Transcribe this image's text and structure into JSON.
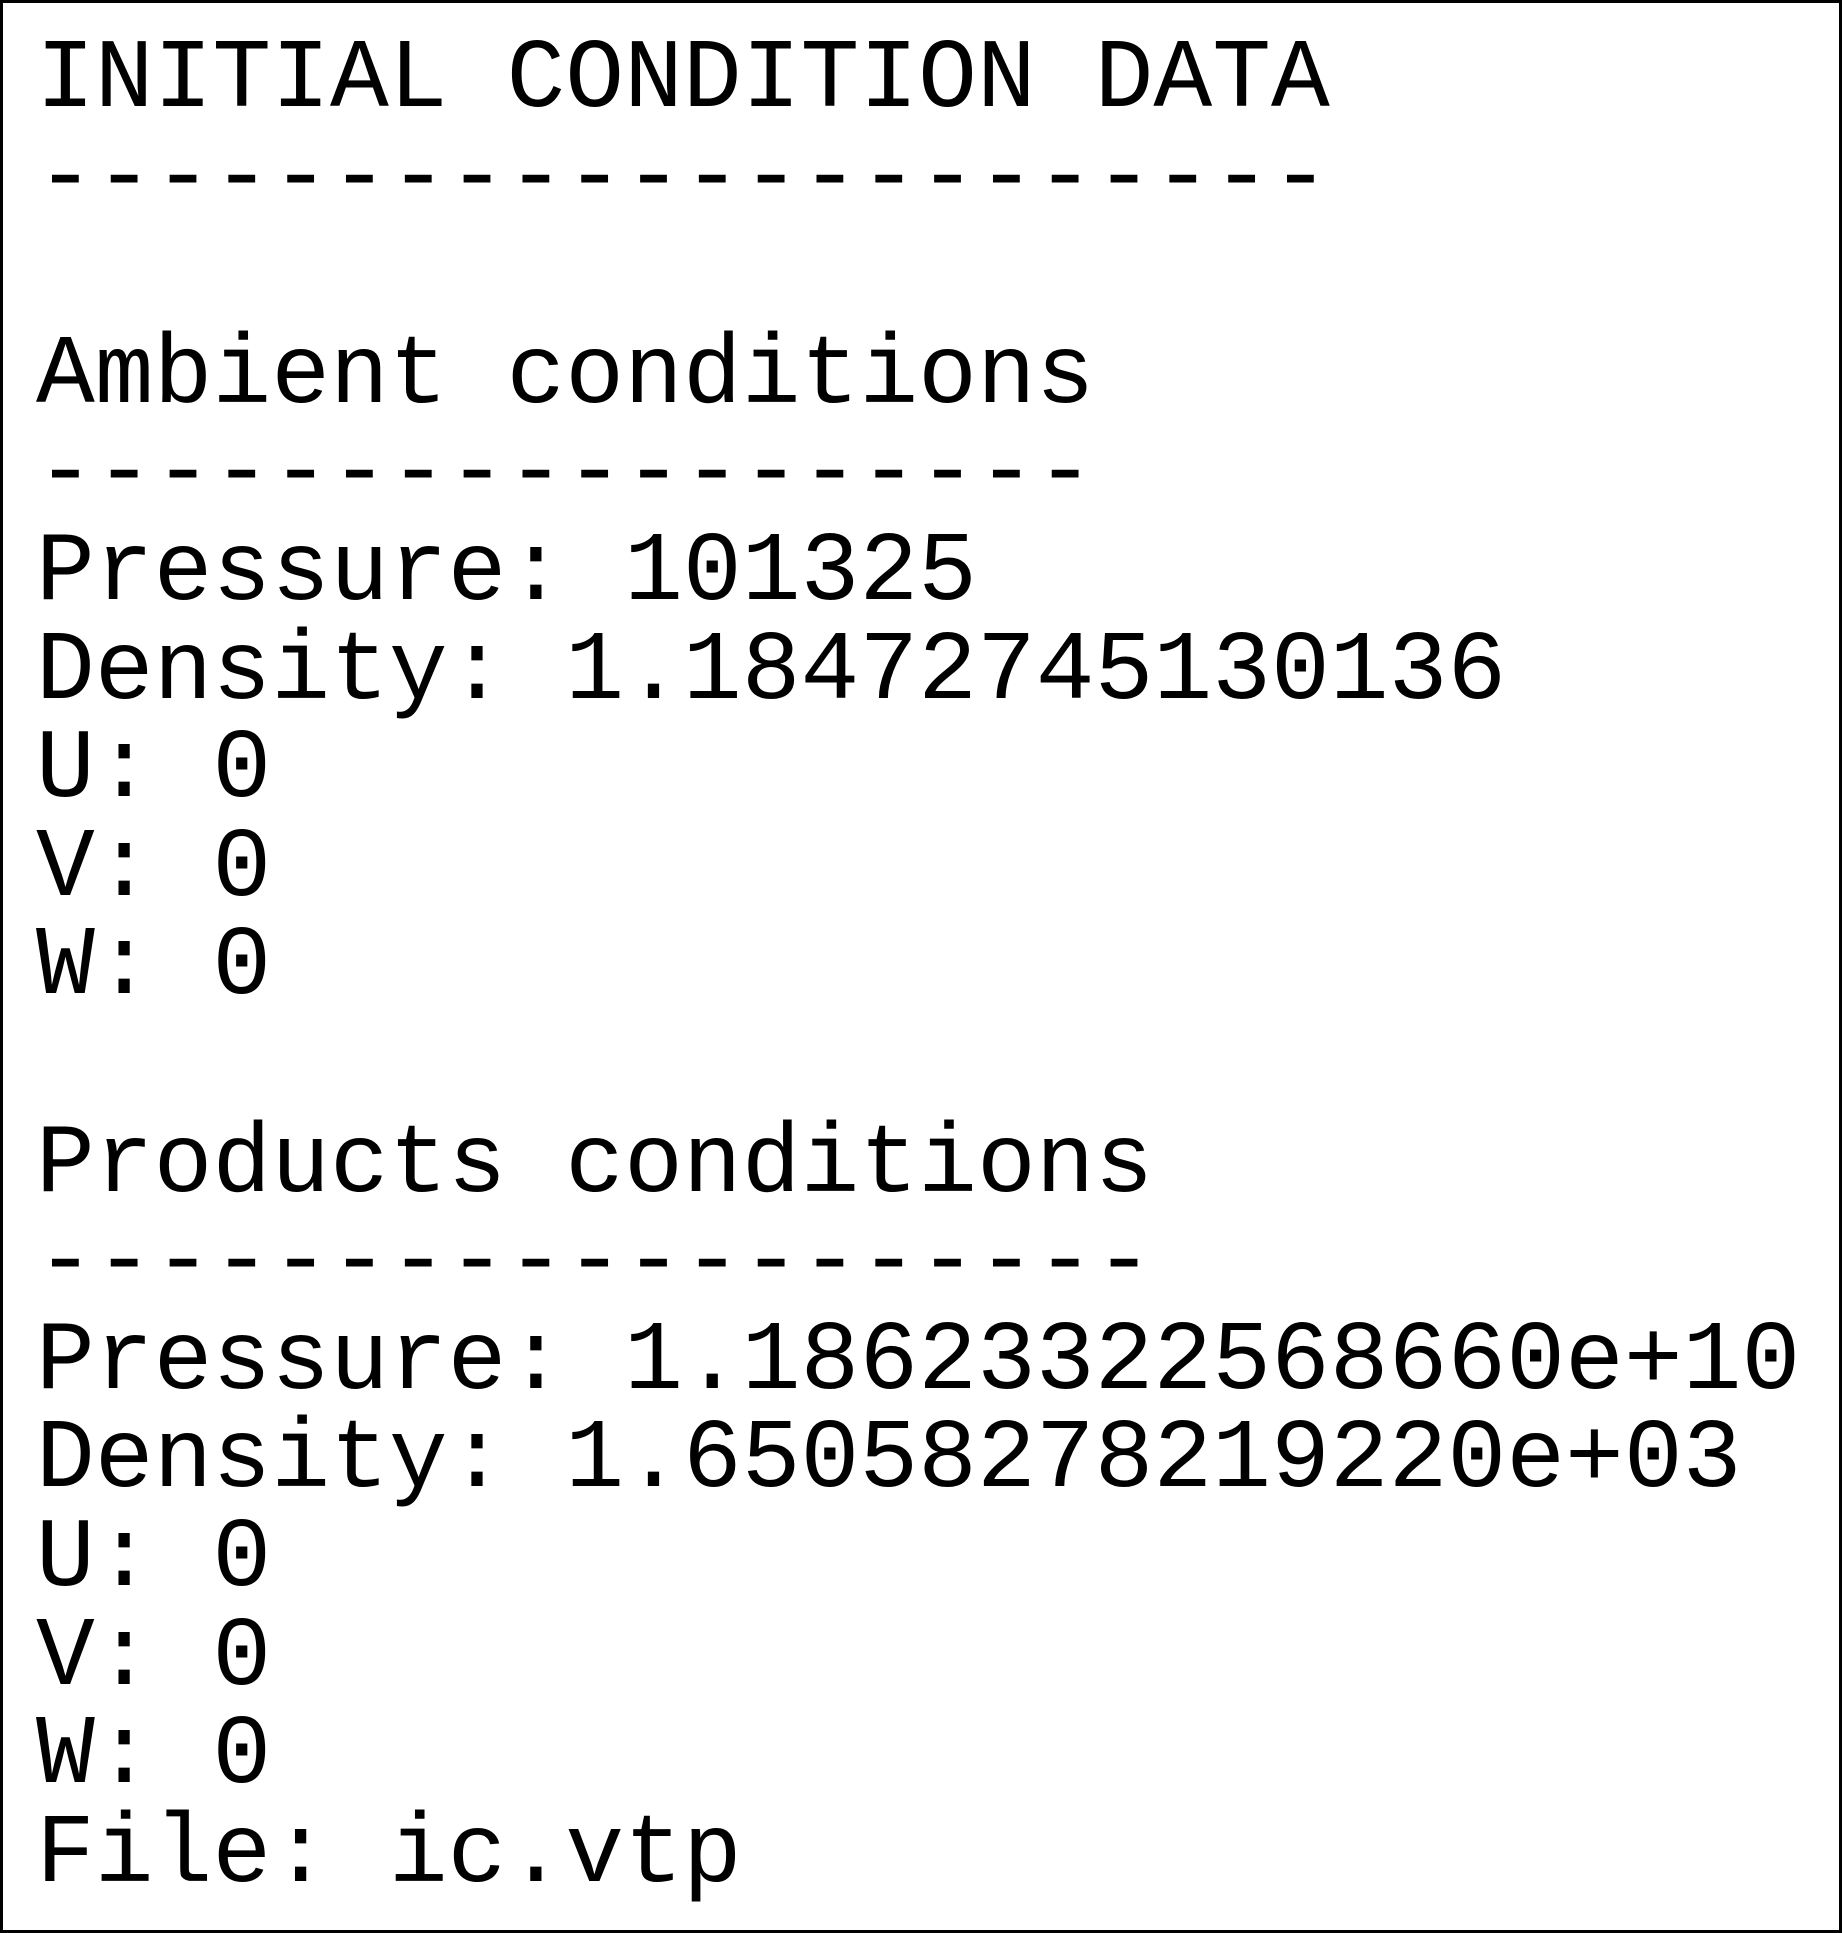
{
  "header": {
    "title": "INITIAL CONDITION DATA",
    "rule": "----------------------"
  },
  "sections": [
    {
      "title": "Ambient conditions",
      "rule": "------------------",
      "fields": [
        {
          "label": "Pressure:",
          "value": "101325"
        },
        {
          "label": "Density:",
          "value": "1.18472745130136"
        },
        {
          "label": "U:",
          "value": "0"
        },
        {
          "label": "V:",
          "value": "0"
        },
        {
          "label": "W:",
          "value": "0"
        }
      ]
    },
    {
      "title": "Products conditions",
      "rule": "-------------------",
      "fields": [
        {
          "label": "Pressure:",
          "value": "1.18623322568660e+10"
        },
        {
          "label": "Density:",
          "value": "1.65058278219220e+03"
        },
        {
          "label": "U:",
          "value": "0"
        },
        {
          "label": "V:",
          "value": "0"
        },
        {
          "label": "W:",
          "value": "0"
        },
        {
          "label": "File:",
          "value": "ic.vtp"
        }
      ]
    }
  ]
}
